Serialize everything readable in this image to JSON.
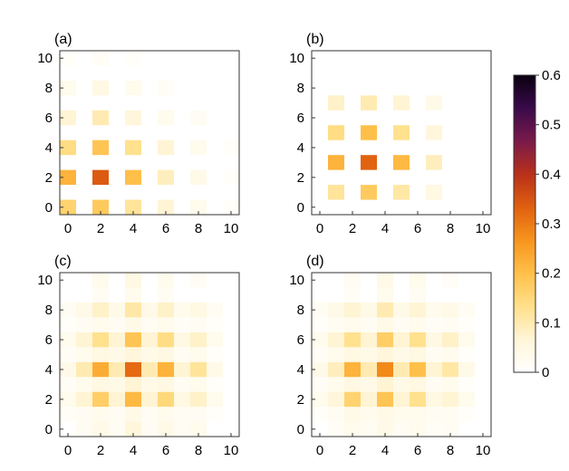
{
  "chart_data": {
    "type": "heatmap",
    "x_ticks": [
      0,
      2,
      4,
      6,
      8,
      10
    ],
    "y_ticks": [
      0,
      2,
      4,
      6,
      8,
      10
    ],
    "x_range": [
      -0.5,
      10.5
    ],
    "y_range": [
      -0.5,
      10.5
    ],
    "colorbar": {
      "min": 0,
      "max": 0.6,
      "ticks": [
        "0.6",
        "0.5",
        "0.4",
        "0.3",
        "0.2",
        "0.1",
        "0"
      ],
      "tick_values": [
        0.6,
        0.5,
        0.4,
        0.3,
        0.2,
        0.1,
        0
      ]
    },
    "panels": [
      {
        "label": "(a)",
        "cells": [
          [
            0,
            0,
            0.16
          ],
          [
            2,
            0,
            0.18
          ],
          [
            4,
            0,
            0.12
          ],
          [
            6,
            0,
            0.07
          ],
          [
            8,
            0,
            0.03
          ],
          [
            10,
            0,
            0.01
          ],
          [
            0,
            2,
            0.22
          ],
          [
            2,
            2,
            0.34
          ],
          [
            4,
            2,
            0.2
          ],
          [
            6,
            2,
            0.09
          ],
          [
            8,
            2,
            0.04
          ],
          [
            10,
            2,
            0.01
          ],
          [
            0,
            4,
            0.14
          ],
          [
            2,
            4,
            0.19
          ],
          [
            4,
            4,
            0.13
          ],
          [
            6,
            4,
            0.07
          ],
          [
            8,
            4,
            0.03
          ],
          [
            10,
            4,
            0.01
          ],
          [
            0,
            6,
            0.07
          ],
          [
            2,
            6,
            0.1
          ],
          [
            4,
            6,
            0.06
          ],
          [
            6,
            6,
            0.03
          ],
          [
            8,
            6,
            0.02
          ],
          [
            0,
            8,
            0.03
          ],
          [
            2,
            8,
            0.05
          ],
          [
            4,
            8,
            0.03
          ],
          [
            6,
            8,
            0.015
          ],
          [
            0,
            10,
            0.01
          ],
          [
            2,
            10,
            0.015
          ],
          [
            4,
            10,
            0.01
          ]
        ]
      },
      {
        "label": "(b)",
        "cells": [
          [
            1,
            1,
            0.12
          ],
          [
            3,
            1,
            0.18
          ],
          [
            5,
            1,
            0.11
          ],
          [
            7,
            1,
            0.05
          ],
          [
            1,
            3,
            0.22
          ],
          [
            3,
            3,
            0.33
          ],
          [
            5,
            3,
            0.21
          ],
          [
            7,
            3,
            0.09
          ],
          [
            1,
            5,
            0.14
          ],
          [
            3,
            5,
            0.2
          ],
          [
            5,
            5,
            0.13
          ],
          [
            7,
            5,
            0.06
          ],
          [
            1,
            7,
            0.08
          ],
          [
            3,
            7,
            0.1
          ],
          [
            5,
            7,
            0.07
          ],
          [
            7,
            7,
            0.04
          ]
        ]
      },
      {
        "label": "(c)",
        "cells": [
          [
            1,
            0,
            0.02
          ],
          [
            2,
            0,
            0.04
          ],
          [
            3,
            0,
            0.02
          ],
          [
            4,
            0,
            0.06
          ],
          [
            5,
            0,
            0.02
          ],
          [
            6,
            0,
            0.04
          ],
          [
            7,
            0,
            0.02
          ],
          [
            8,
            0,
            0.03
          ],
          [
            0,
            1,
            0.015
          ],
          [
            1,
            1,
            0.02
          ],
          [
            2,
            1,
            0.03
          ],
          [
            3,
            1,
            0.02
          ],
          [
            4,
            1,
            0.04
          ],
          [
            5,
            1,
            0.02
          ],
          [
            6,
            1,
            0.03
          ],
          [
            7,
            1,
            0.02
          ],
          [
            8,
            1,
            0.02
          ],
          [
            9,
            1,
            0.01
          ],
          [
            0,
            2,
            0.03
          ],
          [
            1,
            2,
            0.07
          ],
          [
            2,
            2,
            0.17
          ],
          [
            3,
            2,
            0.07
          ],
          [
            4,
            2,
            0.21
          ],
          [
            5,
            2,
            0.07
          ],
          [
            6,
            2,
            0.15
          ],
          [
            7,
            2,
            0.05
          ],
          [
            8,
            2,
            0.08
          ],
          [
            9,
            2,
            0.03
          ],
          [
            0,
            3,
            0.015
          ],
          [
            1,
            3,
            0.03
          ],
          [
            2,
            3,
            0.05
          ],
          [
            3,
            3,
            0.04
          ],
          [
            4,
            3,
            0.07
          ],
          [
            5,
            3,
            0.04
          ],
          [
            6,
            3,
            0.05
          ],
          [
            7,
            3,
            0.02
          ],
          [
            8,
            3,
            0.03
          ],
          [
            9,
            3,
            0.01
          ],
          [
            0,
            4,
            0.04
          ],
          [
            1,
            4,
            0.1
          ],
          [
            2,
            4,
            0.23
          ],
          [
            3,
            4,
            0.1
          ],
          [
            4,
            4,
            0.32
          ],
          [
            5,
            4,
            0.1
          ],
          [
            6,
            4,
            0.22
          ],
          [
            7,
            4,
            0.07
          ],
          [
            8,
            4,
            0.12
          ],
          [
            9,
            4,
            0.04
          ],
          [
            0,
            5,
            0.015
          ],
          [
            1,
            5,
            0.03
          ],
          [
            2,
            5,
            0.05
          ],
          [
            3,
            5,
            0.04
          ],
          [
            4,
            5,
            0.06
          ],
          [
            5,
            5,
            0.04
          ],
          [
            6,
            5,
            0.05
          ],
          [
            7,
            5,
            0.02
          ],
          [
            8,
            5,
            0.03
          ],
          [
            9,
            5,
            0.01
          ],
          [
            0,
            6,
            0.03
          ],
          [
            1,
            6,
            0.07
          ],
          [
            2,
            6,
            0.13
          ],
          [
            3,
            6,
            0.07
          ],
          [
            4,
            6,
            0.19
          ],
          [
            5,
            6,
            0.07
          ],
          [
            6,
            6,
            0.14
          ],
          [
            7,
            6,
            0.05
          ],
          [
            8,
            6,
            0.08
          ],
          [
            9,
            6,
            0.03
          ],
          [
            0,
            7,
            0.01
          ],
          [
            1,
            7,
            0.02
          ],
          [
            2,
            7,
            0.03
          ],
          [
            3,
            7,
            0.02
          ],
          [
            4,
            7,
            0.04
          ],
          [
            5,
            7,
            0.02
          ],
          [
            6,
            7,
            0.03
          ],
          [
            7,
            7,
            0.015
          ],
          [
            8,
            7,
            0.02
          ],
          [
            9,
            7,
            0.01
          ],
          [
            0,
            8,
            0.02
          ],
          [
            1,
            8,
            0.04
          ],
          [
            2,
            8,
            0.08
          ],
          [
            3,
            8,
            0.04
          ],
          [
            4,
            8,
            0.11
          ],
          [
            5,
            8,
            0.04
          ],
          [
            6,
            8,
            0.08
          ],
          [
            7,
            8,
            0.03
          ],
          [
            8,
            8,
            0.05
          ],
          [
            9,
            8,
            0.02
          ],
          [
            2,
            9,
            0.02
          ],
          [
            4,
            9,
            0.03
          ],
          [
            6,
            9,
            0.02
          ],
          [
            2,
            10,
            0.03
          ],
          [
            4,
            10,
            0.05
          ],
          [
            6,
            10,
            0.03
          ],
          [
            8,
            10,
            0.02
          ]
        ]
      },
      {
        "label": "(d)",
        "cells": [
          [
            1,
            0,
            0.015
          ],
          [
            2,
            0,
            0.03
          ],
          [
            3,
            0,
            0.02
          ],
          [
            4,
            0,
            0.04
          ],
          [
            5,
            0,
            0.02
          ],
          [
            6,
            0,
            0.03
          ],
          [
            7,
            0,
            0.015
          ],
          [
            8,
            0,
            0.02
          ],
          [
            0,
            1,
            0.01
          ],
          [
            1,
            1,
            0.02
          ],
          [
            2,
            1,
            0.04
          ],
          [
            3,
            1,
            0.03
          ],
          [
            4,
            1,
            0.04
          ],
          [
            5,
            1,
            0.03
          ],
          [
            6,
            1,
            0.03
          ],
          [
            7,
            1,
            0.02
          ],
          [
            8,
            1,
            0.02
          ],
          [
            9,
            1,
            0.01
          ],
          [
            0,
            2,
            0.03
          ],
          [
            1,
            2,
            0.06
          ],
          [
            2,
            2,
            0.16
          ],
          [
            3,
            2,
            0.07
          ],
          [
            4,
            2,
            0.19
          ],
          [
            5,
            2,
            0.07
          ],
          [
            6,
            2,
            0.13
          ],
          [
            7,
            2,
            0.05
          ],
          [
            8,
            2,
            0.07
          ],
          [
            9,
            2,
            0.03
          ],
          [
            0,
            3,
            0.015
          ],
          [
            1,
            3,
            0.03
          ],
          [
            2,
            3,
            0.05
          ],
          [
            3,
            3,
            0.04
          ],
          [
            4,
            3,
            0.07
          ],
          [
            5,
            3,
            0.04
          ],
          [
            6,
            3,
            0.05
          ],
          [
            7,
            3,
            0.02
          ],
          [
            8,
            3,
            0.03
          ],
          [
            9,
            3,
            0.01
          ],
          [
            0,
            4,
            0.04
          ],
          [
            1,
            4,
            0.09
          ],
          [
            2,
            4,
            0.22
          ],
          [
            3,
            4,
            0.1
          ],
          [
            4,
            4,
            0.28
          ],
          [
            5,
            4,
            0.1
          ],
          [
            6,
            4,
            0.2
          ],
          [
            7,
            4,
            0.07
          ],
          [
            8,
            4,
            0.11
          ],
          [
            9,
            4,
            0.04
          ],
          [
            0,
            5,
            0.015
          ],
          [
            1,
            5,
            0.03
          ],
          [
            2,
            5,
            0.05
          ],
          [
            3,
            5,
            0.04
          ],
          [
            4,
            5,
            0.06
          ],
          [
            5,
            5,
            0.04
          ],
          [
            6,
            5,
            0.05
          ],
          [
            7,
            5,
            0.02
          ],
          [
            8,
            5,
            0.03
          ],
          [
            9,
            5,
            0.01
          ],
          [
            0,
            6,
            0.03
          ],
          [
            1,
            6,
            0.07
          ],
          [
            2,
            6,
            0.13
          ],
          [
            3,
            6,
            0.07
          ],
          [
            4,
            6,
            0.17
          ],
          [
            5,
            6,
            0.07
          ],
          [
            6,
            6,
            0.13
          ],
          [
            7,
            6,
            0.05
          ],
          [
            8,
            6,
            0.08
          ],
          [
            9,
            6,
            0.03
          ],
          [
            0,
            7,
            0.01
          ],
          [
            1,
            7,
            0.02
          ],
          [
            2,
            7,
            0.03
          ],
          [
            3,
            7,
            0.02
          ],
          [
            4,
            7,
            0.04
          ],
          [
            5,
            7,
            0.02
          ],
          [
            6,
            7,
            0.03
          ],
          [
            7,
            7,
            0.015
          ],
          [
            8,
            7,
            0.02
          ],
          [
            9,
            7,
            0.01
          ],
          [
            0,
            8,
            0.02
          ],
          [
            1,
            8,
            0.04
          ],
          [
            2,
            8,
            0.07
          ],
          [
            3,
            8,
            0.04
          ],
          [
            4,
            8,
            0.1
          ],
          [
            5,
            8,
            0.04
          ],
          [
            6,
            8,
            0.07
          ],
          [
            7,
            8,
            0.03
          ],
          [
            8,
            8,
            0.04
          ],
          [
            9,
            8,
            0.02
          ],
          [
            2,
            9,
            0.015
          ],
          [
            4,
            9,
            0.03
          ],
          [
            6,
            9,
            0.02
          ],
          [
            2,
            10,
            0.02
          ],
          [
            4,
            10,
            0.04
          ],
          [
            6,
            10,
            0.03
          ],
          [
            8,
            10,
            0.015
          ]
        ]
      }
    ]
  },
  "colors": {
    "colormap": [
      "#ffffff",
      "#fff5d8",
      "#ffe08a",
      "#ffc04a",
      "#f7941d",
      "#e06010",
      "#b8301a",
      "#7a1a4a",
      "#3a0a4a",
      "#0a0010"
    ],
    "frame": "#333333"
  }
}
